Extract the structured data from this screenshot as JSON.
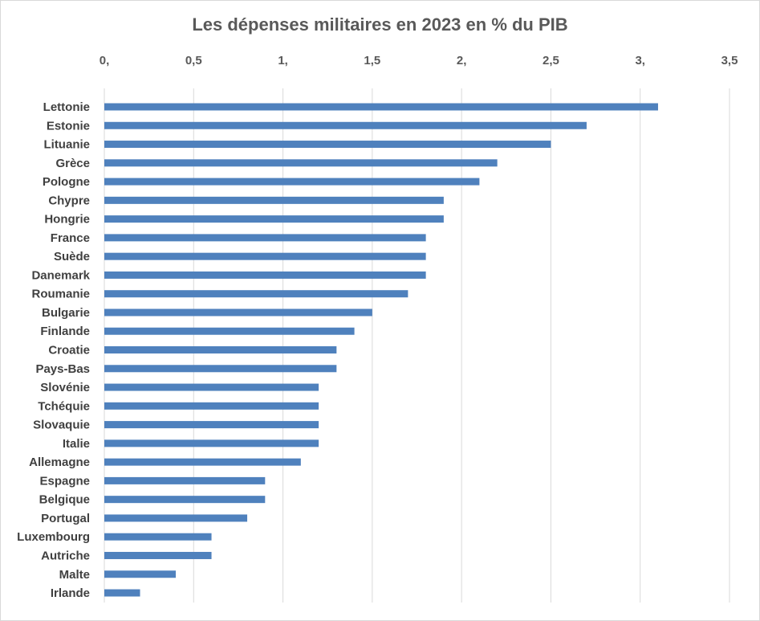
{
  "chart_data": {
    "type": "bar",
    "orientation": "horizontal",
    "title": "Les dépenses militaires en 2023 en % du PIB",
    "xlabel": "",
    "ylabel": "",
    "xlim": [
      0,
      3.5
    ],
    "x_axis_position": "top",
    "grid": true,
    "legend": "none",
    "bar_color": "#4F81BD",
    "tick_labels": [
      "0,",
      "0,5",
      "1,",
      "1,5",
      "2,",
      "2,5",
      "3,",
      "3,5"
    ],
    "categories": [
      "Lettonie",
      "Estonie",
      "Lituanie",
      "Grèce",
      "Pologne",
      "Chypre",
      "Hongrie",
      "France",
      "Suède",
      "Danemark",
      "Roumanie",
      "Bulgarie",
      "Finlande",
      "Croatie",
      "Pays-Bas",
      "Slovénie",
      "Tchéquie",
      "Slovaquie",
      "Italie",
      "Allemagne",
      "Espagne",
      "Belgique",
      "Portugal",
      "Luxembourg",
      "Autriche",
      "Malte",
      "Irlande"
    ],
    "values": [
      3.1,
      2.7,
      2.5,
      2.2,
      2.1,
      1.9,
      1.9,
      1.8,
      1.8,
      1.8,
      1.7,
      1.5,
      1.4,
      1.3,
      1.3,
      1.2,
      1.2,
      1.2,
      1.2,
      1.1,
      0.9,
      0.9,
      0.8,
      0.6,
      0.6,
      0.4,
      0.2
    ]
  }
}
